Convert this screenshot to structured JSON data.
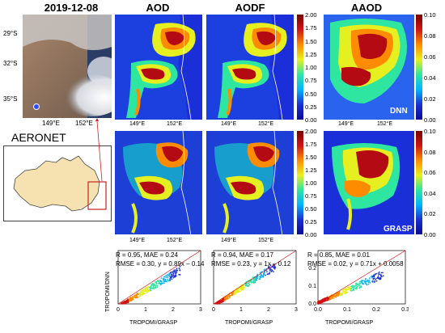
{
  "date_label": "2019-12-08",
  "col_titles": [
    "AOD",
    "AODF",
    "AAOD"
  ],
  "sat_lat_labels": [
    "29°S",
    "32°S",
    "35°S"
  ],
  "sat_lon_labels": [
    "149°E",
    "152°E"
  ],
  "map_lon_labels": [
    "149°E",
    "152°E"
  ],
  "aeronet_label": "AERONET",
  "row_tags": [
    "DNN",
    "GRASP"
  ],
  "colorbar_aod": [
    "2.00",
    "1.75",
    "1.50",
    "1.25",
    "1.00",
    "0.75",
    "0.50",
    "0.25",
    "0.00"
  ],
  "colorbar_aaod": [
    "0.10",
    "0.08",
    "0.06",
    "0.04",
    "0.02",
    "0.00"
  ],
  "colors": {
    "background_blue": "#1a2fd8",
    "plume_red": "#b40a14",
    "sea_land_line": "#ffffff"
  },
  "chart_data": [
    {
      "type": "scatter",
      "panel": "AOD",
      "xlabel": "TROPOMI/GRASP",
      "ylabel": "TROPOMI/DNN",
      "xlim": [
        0,
        3
      ],
      "ylim": [
        0,
        3
      ],
      "xticks": [
        "0",
        "1",
        "2",
        "3"
      ],
      "stats_line1": "R = 0.95, MAE = 0.24",
      "stats_line2": "RMSE = 0.30, y = 0.89x – 0.14",
      "slope": 0.89,
      "intercept": -0.14
    },
    {
      "type": "scatter",
      "panel": "AODF",
      "xlabel": "TROPOMI/GRASP",
      "ylabel": "",
      "xlim": [
        0,
        3
      ],
      "ylim": [
        0,
        3
      ],
      "xticks": [
        "0",
        "1",
        "2",
        "3"
      ],
      "stats_line1": "R = 0.94, MAE = 0.17",
      "stats_line2": "RMSE = 0.23, y = 1x – 0.12",
      "slope": 1.0,
      "intercept": -0.12
    },
    {
      "type": "scatter",
      "panel": "AAOD",
      "xlabel": "TROPOMI/GRASP",
      "ylabel": "",
      "xlim": [
        0,
        0.3
      ],
      "ylim": [
        0,
        0.3
      ],
      "xticks": [
        "0.0",
        "0.1",
        "0.2",
        "0.3"
      ],
      "yticks": [
        "0.0",
        "0.1",
        "0.2"
      ],
      "stats_line1": "R = 0.85, MAE = 0.01",
      "stats_line2": "RMSE = 0.02, y = 0.71x + 0.0058",
      "slope": 0.71,
      "intercept": 0.0058
    }
  ]
}
